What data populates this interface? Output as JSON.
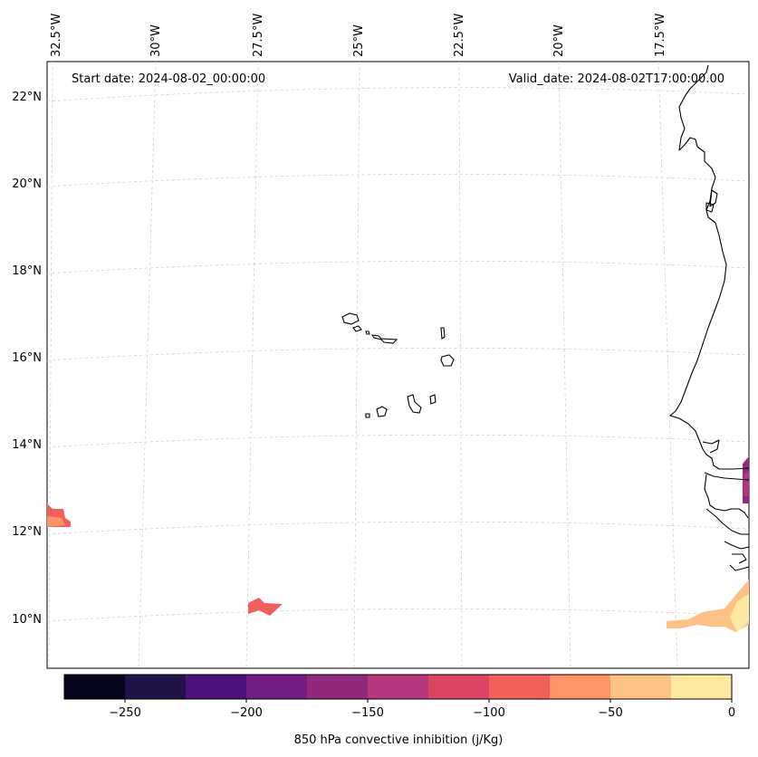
{
  "header": {
    "start_date": "Start date: 2024-08-02_00:00:00",
    "valid_date": "Valid_date: 2024-08-02T17:00:00.00"
  },
  "axes": {
    "top_labels": [
      "32.5°W",
      "30°W",
      "27.5°W",
      "25°W",
      "22.5°W",
      "20°W",
      "17.5°W"
    ],
    "left_labels": [
      "22°N",
      "20°N",
      "18°N",
      "16°N",
      "14°N",
      "12°N",
      "10°N"
    ]
  },
  "colorbar": {
    "label": "850 hPa convective inhibition (j/Kg)",
    "ticks": [
      "−250",
      "−200",
      "−150",
      "−100",
      "−50",
      "0"
    ],
    "tick_values": [
      -250,
      -200,
      -150,
      -100,
      -50,
      0
    ],
    "range": [
      -275,
      0
    ],
    "bins": 11,
    "colors": [
      "#06051b",
      "#1f1348",
      "#4f127b",
      "#721f81",
      "#912a7c",
      "#b5367a",
      "#dc4463",
      "#f2605c",
      "#fd9468",
      "#fec287",
      "#fde9a2"
    ]
  }
}
